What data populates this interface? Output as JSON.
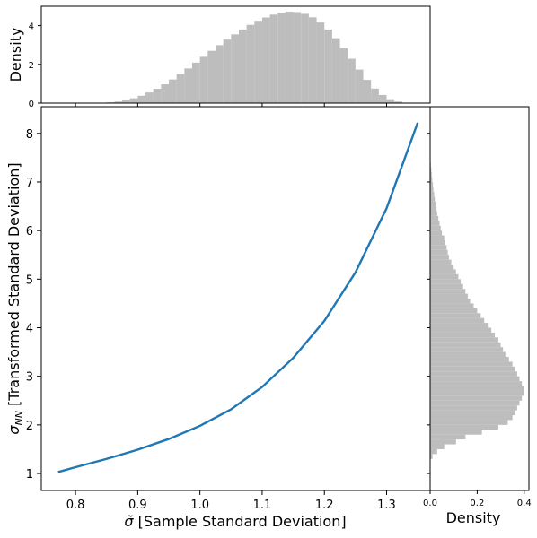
{
  "chart_data": [
    {
      "type": "line",
      "panel": "main",
      "xlabel": "σ̃ [Sample Standard Deviation]",
      "xlabel_symbol": "σ̃",
      "xlabel_text": " [Sample Standard Deviation]",
      "ylabel": "σNN [Transformed Standard Deviation]",
      "ylabel_symbol": "σ",
      "ylabel_sub": "NN",
      "ylabel_text": " [Transformed Standard Deviation]",
      "xlim": [
        0.745,
        1.37
      ],
      "ylim": [
        0.65,
        8.55
      ],
      "xticks": [
        0.8,
        0.9,
        1.0,
        1.1,
        1.2,
        1.3
      ],
      "xtick_labels": [
        "0.8",
        "0.9",
        "1.0",
        "1.1",
        "1.2",
        "1.3"
      ],
      "yticks": [
        1,
        2,
        3,
        4,
        5,
        6,
        7,
        8
      ],
      "ytick_labels": [
        "1",
        "2",
        "3",
        "4",
        "5",
        "6",
        "7",
        "8"
      ],
      "line_color": "#1f77b4",
      "series": [
        {
          "x": [
            0.772,
            0.8,
            0.85,
            0.9,
            0.95,
            1.0,
            1.05,
            1.1,
            1.15,
            1.2,
            1.25,
            1.3,
            1.35
          ],
          "y": [
            1.03,
            1.13,
            1.3,
            1.49,
            1.71,
            1.98,
            2.32,
            2.78,
            3.38,
            4.14,
            5.14,
            6.46,
            8.22
          ]
        }
      ],
      "grid": false
    },
    {
      "type": "bar",
      "panel": "top-marginal-histogram",
      "ylabel": "Density",
      "xlim": [
        0.745,
        1.37
      ],
      "ylim": [
        0,
        5.0
      ],
      "yticks": [
        0,
        2,
        4
      ],
      "ytick_labels": [
        "0",
        "2",
        "4"
      ],
      "bar_color": "#bdbdbd",
      "bin_width": 0.0125,
      "bin_starts": [
        0.85,
        0.8625,
        0.875,
        0.8875,
        0.9,
        0.9125,
        0.925,
        0.9375,
        0.95,
        0.9625,
        0.975,
        0.9875,
        1.0,
        1.0125,
        1.025,
        1.0375,
        1.05,
        1.0625,
        1.075,
        1.0875,
        1.1,
        1.1125,
        1.125,
        1.1375,
        1.15,
        1.1625,
        1.175,
        1.1875,
        1.2,
        1.2125,
        1.225,
        1.2375,
        1.25,
        1.2625,
        1.275,
        1.2875,
        1.3,
        1.3125
      ],
      "values": [
        0.04,
        0.08,
        0.15,
        0.25,
        0.38,
        0.55,
        0.74,
        0.97,
        1.22,
        1.5,
        1.79,
        2.09,
        2.39,
        2.7,
        2.99,
        3.28,
        3.55,
        3.8,
        4.04,
        4.25,
        4.42,
        4.57,
        4.66,
        4.72,
        4.7,
        4.61,
        4.43,
        4.16,
        3.8,
        3.35,
        2.84,
        2.29,
        1.73,
        1.2,
        0.75,
        0.42,
        0.2,
        0.08
      ]
    },
    {
      "type": "bar",
      "panel": "right-marginal-histogram",
      "orientation": "horizontal",
      "xlabel": "Density",
      "xlim": [
        0,
        0.42
      ],
      "xticks": [
        0.0,
        0.2,
        0.4
      ],
      "xtick_labels": [
        "0.0",
        "0.2",
        "0.4"
      ],
      "ylim": [
        0.65,
        8.55
      ],
      "bar_color": "#bdbdbd",
      "bin_width": 0.1,
      "bin_starts": [
        1.3,
        1.4,
        1.5,
        1.6,
        1.7,
        1.8,
        1.9,
        2.0,
        2.1,
        2.2,
        2.3,
        2.4,
        2.5,
        2.6,
        2.7,
        2.8,
        2.9,
        3.0,
        3.1,
        3.2,
        3.3,
        3.4,
        3.5,
        3.6,
        3.7,
        3.8,
        3.9,
        4.0,
        4.1,
        4.2,
        4.3,
        4.4,
        4.5,
        4.6,
        4.7,
        4.8,
        4.9,
        5.0,
        5.1,
        5.2,
        5.3,
        5.4,
        5.5,
        5.6,
        5.7,
        5.8,
        5.9,
        6.0,
        6.1,
        6.2,
        6.3,
        6.4,
        6.5,
        6.6,
        6.7,
        6.8,
        6.9,
        7.0,
        7.1,
        7.2,
        7.3,
        7.4
      ],
      "values": [
        0.01,
        0.03,
        0.06,
        0.11,
        0.15,
        0.22,
        0.29,
        0.33,
        0.35,
        0.36,
        0.37,
        0.38,
        0.39,
        0.4,
        0.4,
        0.39,
        0.38,
        0.37,
        0.36,
        0.35,
        0.335,
        0.32,
        0.31,
        0.3,
        0.29,
        0.275,
        0.26,
        0.245,
        0.23,
        0.215,
        0.2,
        0.185,
        0.17,
        0.16,
        0.15,
        0.14,
        0.13,
        0.12,
        0.11,
        0.1,
        0.09,
        0.08,
        0.075,
        0.07,
        0.065,
        0.06,
        0.05,
        0.045,
        0.04,
        0.035,
        0.03,
        0.027,
        0.024,
        0.02,
        0.017,
        0.014,
        0.012,
        0.009,
        0.007,
        0.005,
        0.003,
        0.002
      ]
    }
  ]
}
